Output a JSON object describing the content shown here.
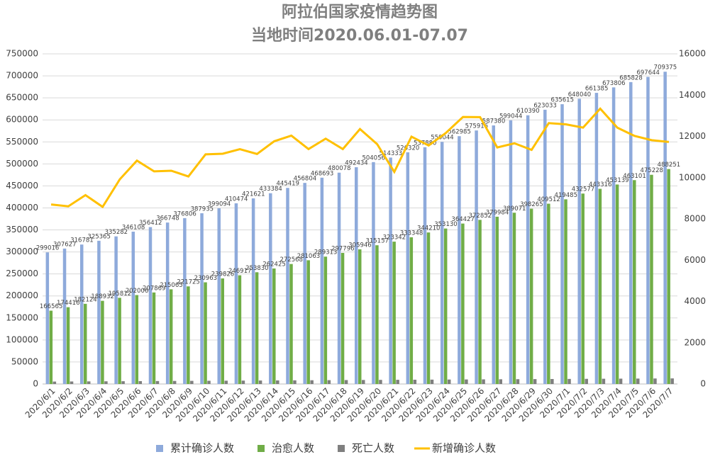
{
  "chart_data": {
    "type": "bar-line",
    "title": "阿拉伯国家疫情趋势图",
    "subtitle": "当地时间2020.06.01-07.07",
    "categories": [
      "2020/6/1",
      "2020/6/2",
      "2020/6/3",
      "2020/6/4",
      "2020/6/5",
      "2020/6/6",
      "2020/6/7",
      "2020/6/8",
      "2020/6/9",
      "2020/6/10",
      "2020/6/11",
      "2020/6/12",
      "2020/6/13",
      "2020/6/14",
      "2020/6/15",
      "2020/6/16",
      "2020/6/17",
      "2020/6/18",
      "2020/6/19",
      "2020/6/20",
      "2020/6/21",
      "2020/6/22",
      "2020/6/23",
      "2020/6/24",
      "2020/6/25",
      "2020/6/26",
      "2020/6/27",
      "2020/6/28",
      "2020/6/29",
      "2020/6/30",
      "2020/7/1",
      "2020/7/2",
      "2020/7/3",
      "2020/7/4",
      "2020/7/5",
      "2020/7/6",
      "2020/7/7"
    ],
    "series": [
      {
        "name": "累计确诊人数",
        "type": "bar",
        "color": "#8eaadb",
        "labels": true,
        "values": [
          299016,
          307627,
          316781,
          325365,
          335282,
          346108,
          356412,
          366748,
          376806,
          387935,
          399094,
          410474,
          421621,
          433384,
          445419,
          456804,
          468693,
          480078,
          492434,
          504056,
          514333,
          526320,
          537880,
          550044,
          562985,
          575916,
          587380,
          599044,
          610390,
          623033,
          635615,
          648040,
          661385,
          673806,
          685828,
          697644,
          709375
        ]
      },
      {
        "name": "治愈人数",
        "type": "bar",
        "color": "#70ad47",
        "labels": true,
        "values": [
          166565,
          174416,
          182124,
          188932,
          195812,
          202006,
          207869,
          215065,
          221725,
          230963,
          239826,
          246917,
          253830,
          262425,
          272568,
          281063,
          289313,
          297796,
          305946,
          315157,
          323342,
          333348,
          344210,
          353130,
          364427,
          372852,
          379984,
          389071,
          398265,
          409512,
          419485,
          432577,
          443316,
          453139,
          463101,
          475228,
          488251
        ]
      },
      {
        "name": "死亡人数",
        "type": "bar",
        "color": "#7f7f7f",
        "labels": false,
        "values": [
          5500,
          5700,
          5900,
          6100,
          6300,
          6500,
          6700,
          6900,
          7100,
          7300,
          7500,
          7700,
          7900,
          8100,
          8300,
          8500,
          8700,
          8900,
          9100,
          9300,
          9500,
          9700,
          9900,
          10100,
          10300,
          10500,
          10700,
          10900,
          11100,
          11300,
          11500,
          11700,
          11900,
          12100,
          12300,
          12500,
          12700
        ]
      },
      {
        "name": "新增确诊人数",
        "type": "line",
        "axis": "y2",
        "color": "#ffc000",
        "labels": false,
        "values": [
          8700,
          8611,
          9154,
          8584,
          9917,
          10826,
          10304,
          10336,
          10058,
          11129,
          11159,
          11380,
          11147,
          11763,
          12035,
          11385,
          11889,
          11385,
          12356,
          11622,
          10277,
          11987,
          11560,
          12164,
          12941,
          12931,
          11464,
          11664,
          11346,
          12643,
          12582,
          12425,
          13345,
          12421,
          12022,
          11816,
          11731
        ]
      }
    ],
    "ylim": [
      0,
      750000
    ],
    "yticks": [
      0,
      50000,
      100000,
      150000,
      200000,
      250000,
      300000,
      350000,
      400000,
      450000,
      500000,
      550000,
      600000,
      650000,
      700000,
      750000
    ],
    "y2lim": [
      0,
      16000
    ],
    "y2ticks": [
      0,
      2000,
      4000,
      6000,
      8000,
      10000,
      12000,
      14000,
      16000
    ],
    "grid": true,
    "legend": "bottom"
  }
}
